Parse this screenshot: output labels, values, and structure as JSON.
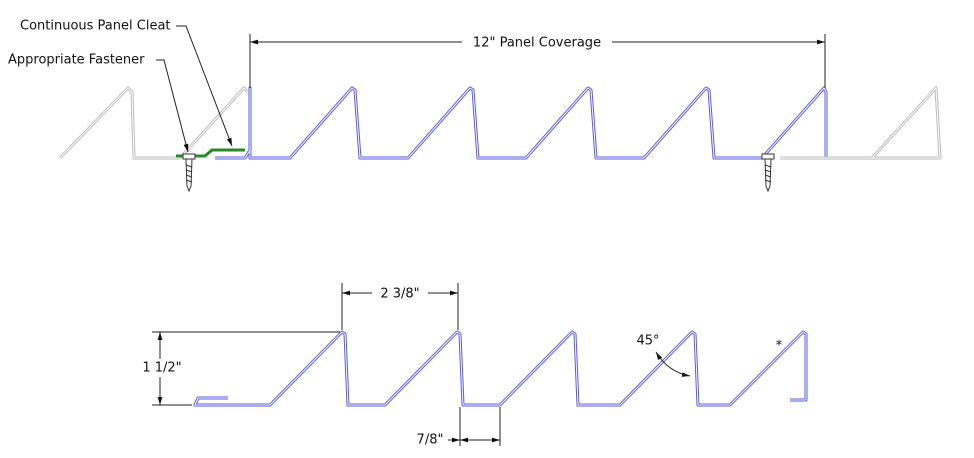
{
  "labels": {
    "cleat": "Continuous Panel Cleat",
    "fastener": "Appropriate Fastener",
    "coverage": "12\" Panel Coverage",
    "rib_spacing": "2 3/8\"",
    "height": "1 1/2\"",
    "angle": "45°",
    "note": "*",
    "flat": "7/8\""
  }
}
